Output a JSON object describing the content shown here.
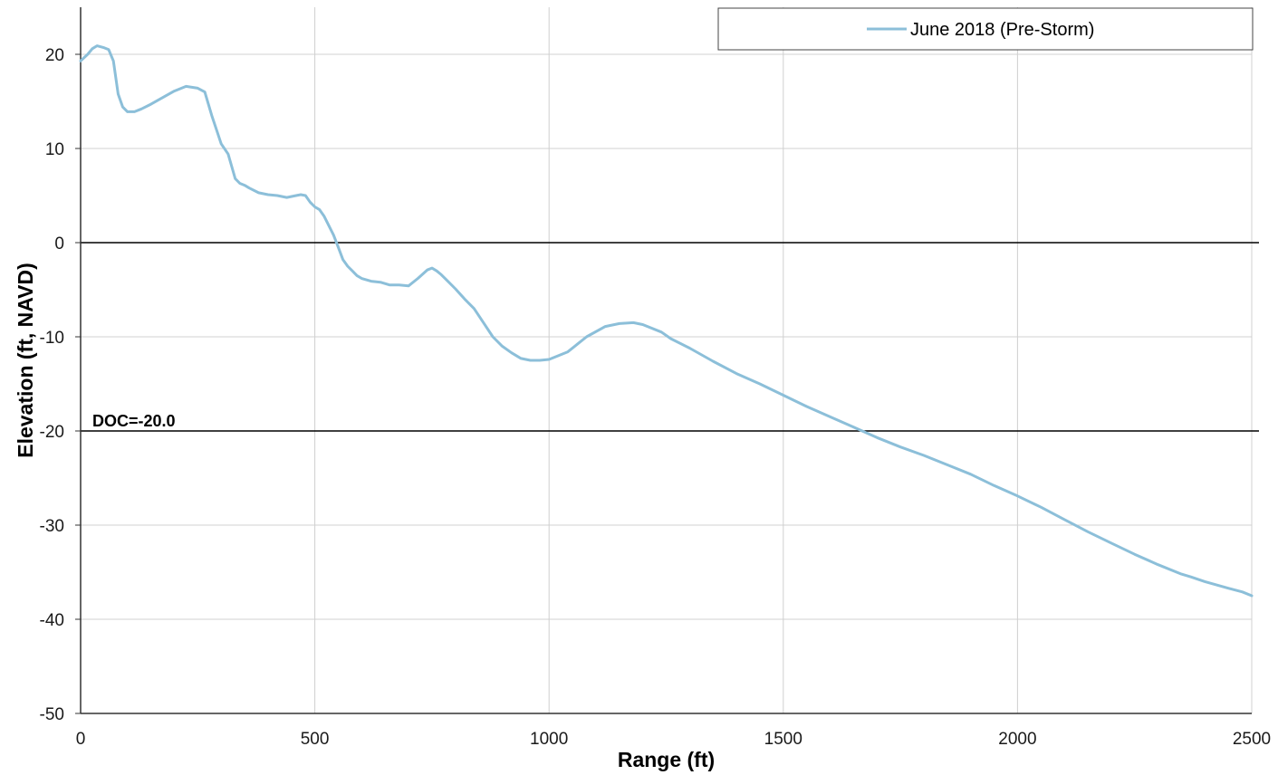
{
  "chart_data": {
    "type": "line",
    "title": "",
    "xlabel": "Range (ft)",
    "ylabel": "Elevation (ft, NAVD)",
    "xlim": [
      0,
      2500
    ],
    "ylim": [
      -50,
      25
    ],
    "xticks": [
      0,
      500,
      1000,
      1500,
      2000,
      2500
    ],
    "yticks": [
      -50,
      -40,
      -30,
      -20,
      -10,
      0,
      10,
      20
    ],
    "grid": true,
    "legend_position": "top-right",
    "reference_lines": [
      {
        "y": 0,
        "color": "#000000"
      },
      {
        "y": -20,
        "color": "#000000",
        "label": "DOC=-20.0"
      }
    ],
    "series": [
      {
        "name": "June 2018 (Pre-Storm)",
        "color": "#8cbfd9",
        "x": [
          0,
          15,
          25,
          35,
          50,
          60,
          70,
          80,
          90,
          100,
          115,
          130,
          150,
          175,
          200,
          225,
          250,
          265,
          280,
          290,
          300,
          315,
          330,
          340,
          350,
          360,
          380,
          400,
          420,
          440,
          460,
          470,
          480,
          490,
          500,
          510,
          520,
          530,
          540,
          550,
          560,
          570,
          580,
          590,
          600,
          620,
          640,
          660,
          680,
          700,
          720,
          740,
          750,
          760,
          770,
          780,
          800,
          820,
          840,
          860,
          880,
          900,
          920,
          940,
          960,
          980,
          1000,
          1040,
          1080,
          1120,
          1150,
          1180,
          1200,
          1240,
          1260,
          1300,
          1350,
          1400,
          1450,
          1500,
          1550,
          1600,
          1650,
          1700,
          1750,
          1800,
          1850,
          1900,
          1950,
          2000,
          2050,
          2100,
          2150,
          2200,
          2250,
          2300,
          2350,
          2370,
          2400,
          2450,
          2480,
          2500
        ],
        "y": [
          19.3,
          20.0,
          20.6,
          20.9,
          20.7,
          20.5,
          19.3,
          15.8,
          14.4,
          13.9,
          13.9,
          14.2,
          14.7,
          15.4,
          16.1,
          16.6,
          16.4,
          16.0,
          13.5,
          12.0,
          10.5,
          9.4,
          6.8,
          6.3,
          6.1,
          5.8,
          5.3,
          5.1,
          5.0,
          4.8,
          5.0,
          5.1,
          5.0,
          4.3,
          3.8,
          3.5,
          2.8,
          1.8,
          0.8,
          -0.5,
          -1.8,
          -2.5,
          -3.0,
          -3.5,
          -3.8,
          -4.1,
          -4.2,
          -4.5,
          -4.5,
          -4.6,
          -3.8,
          -2.9,
          -2.7,
          -3.0,
          -3.4,
          -3.9,
          -4.9,
          -6.0,
          -7.0,
          -8.5,
          -10.0,
          -11.0,
          -11.7,
          -12.3,
          -12.5,
          -12.5,
          -12.4,
          -11.6,
          -10.0,
          -8.9,
          -8.6,
          -8.5,
          -8.7,
          -9.5,
          -10.2,
          -11.2,
          -12.6,
          -13.9,
          -15.0,
          -16.2,
          -17.4,
          -18.5,
          -19.6,
          -20.7,
          -21.7,
          -22.6,
          -23.6,
          -24.6,
          -25.8,
          -26.9,
          -28.1,
          -29.4,
          -30.7,
          -31.9,
          -33.1,
          -34.2,
          -35.2,
          -35.5,
          -36.0,
          -36.7,
          -37.1,
          -37.5
        ]
      }
    ]
  }
}
